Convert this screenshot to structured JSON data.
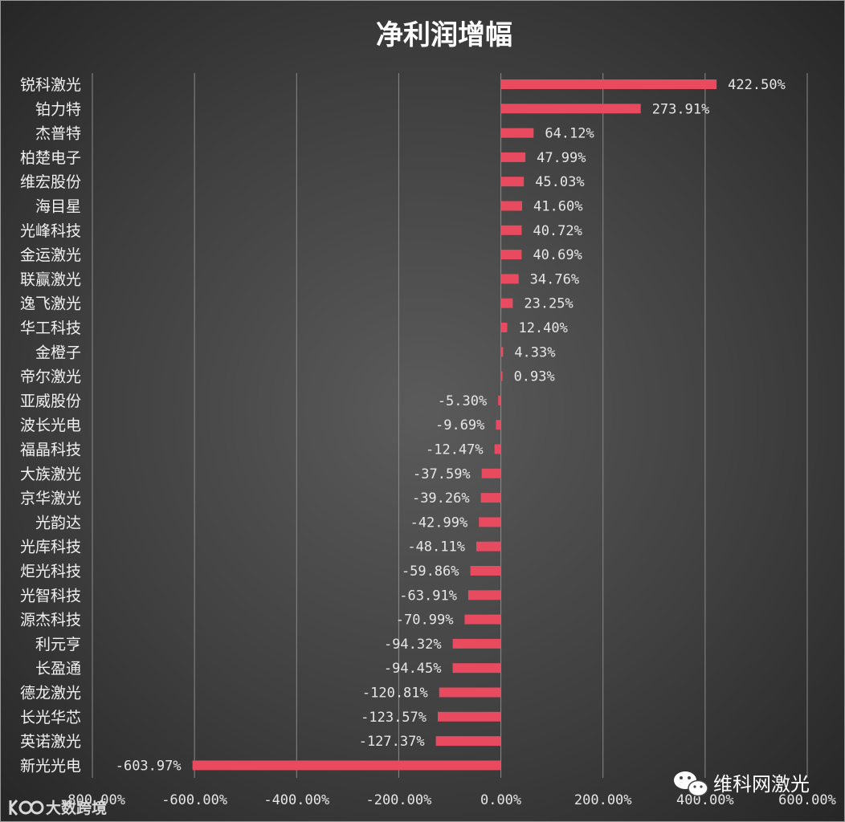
{
  "chart_data": {
    "type": "bar",
    "orientation": "horizontal",
    "title": "净利润增幅",
    "categories": [
      "锐科激光",
      "铂力特",
      "杰普特",
      "柏楚电子",
      "维宏股份",
      "海目星",
      "光峰科技",
      "金运激光",
      "联赢激光",
      "逸飞激光",
      "华工科技",
      "金橙子",
      "帝尔激光",
      "亚威股份",
      "波长光电",
      "福晶科技",
      "大族激光",
      "京华激光",
      "光韵达",
      "光库科技",
      "炬光科技",
      "光智科技",
      "源杰科技",
      "利元亨",
      "长盈通",
      "德龙激光",
      "长光华芯",
      "英诺激光",
      "新光光电"
    ],
    "values": [
      422.5,
      273.91,
      64.12,
      47.99,
      45.03,
      41.6,
      40.72,
      40.69,
      34.76,
      23.25,
      12.4,
      4.33,
      0.93,
      -5.3,
      -9.69,
      -12.47,
      -37.59,
      -39.26,
      -42.99,
      -48.11,
      -59.86,
      -63.91,
      -70.99,
      -94.32,
      -94.45,
      -120.81,
      -123.57,
      -127.37,
      -603.97
    ],
    "value_labels": [
      "422.50%",
      "273.91%",
      "64.12%",
      "47.99%",
      "45.03%",
      "41.60%",
      "40.72%",
      "40.69%",
      "34.76%",
      "23.25%",
      "12.40%",
      "4.33%",
      "0.93%",
      "-5.30%",
      "-9.69%",
      "-12.47%",
      "-37.59%",
      "-39.26%",
      "-42.99%",
      "-48.11%",
      "-59.86%",
      "-63.91%",
      "-70.99%",
      "-94.32%",
      "-94.45%",
      "-120.81%",
      "-123.57%",
      "-127.37%",
      "-603.97%"
    ],
    "xlim": [
      -800,
      600
    ],
    "xticks": [
      -800,
      -600,
      -400,
      -200,
      0,
      200,
      400,
      600
    ],
    "xtick_labels": [
      "-800.00%",
      "-600.00%",
      "-400.00%",
      "-200.00%",
      "0.00%",
      "200.00%",
      "400.00%",
      "600.00%"
    ],
    "grid": "vertical",
    "xlabel": "",
    "ylabel": "",
    "colors": {
      "bar": "#e84a5f",
      "background": "#404040",
      "text": "#ffffff"
    }
  },
  "watermarks": {
    "right": {
      "text": "维科网激光",
      "icon": "wechat-icon"
    },
    "left": {
      "text": "大数跨境",
      "icon": "logo-mark-icon"
    }
  }
}
